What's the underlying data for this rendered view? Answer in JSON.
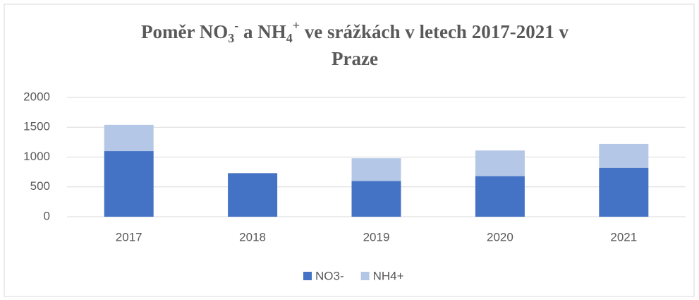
{
  "chart_data": {
    "type": "stacked_bar",
    "title": {
      "line1": [
        "Poměr NO",
        "3",
        "-",
        " a NH",
        "4",
        "+",
        " ve srážkách v letech 2017-2021 v"
      ],
      "line2": "Praze"
    },
    "categories": [
      "2017",
      "2018",
      "2019",
      "2020",
      "2021"
    ],
    "series": [
      {
        "name": "NO3-",
        "color": "#4472c4",
        "values": [
          1100,
          730,
          600,
          680,
          820
        ]
      },
      {
        "name": "NH4+",
        "color": "#b4c7e7",
        "values": [
          440,
          0,
          380,
          430,
          400
        ]
      }
    ],
    "ylim": [
      0,
      2000
    ],
    "yticks": [
      0,
      500,
      1000,
      1500,
      2000
    ],
    "grid": true,
    "legend": "bottom"
  }
}
